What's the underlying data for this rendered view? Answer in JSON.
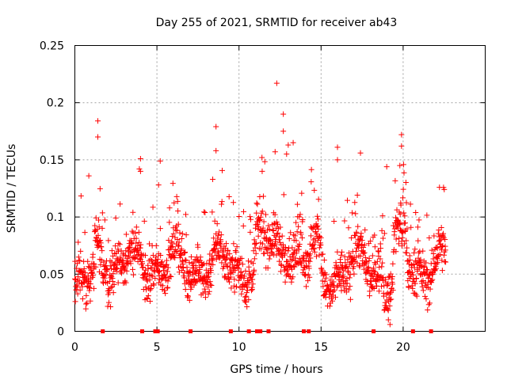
{
  "chart_data": {
    "type": "scatter",
    "title": "Day 255 of 2021, SRMTID for receiver ab43",
    "xlabel": "GPS time / hours",
    "ylabel": "SRMTID / TECUs",
    "xlim": [
      0,
      25
    ],
    "ylim": [
      0,
      0.25
    ],
    "x_ticks": [
      0,
      5,
      10,
      15,
      20
    ],
    "x_tick_labels": [
      "0",
      "5",
      "10",
      "15",
      "20"
    ],
    "y_ticks": [
      0,
      0.05,
      0.1,
      0.15,
      0.2,
      0.25
    ],
    "y_tick_labels": [
      "0",
      "0.05",
      "0.1",
      "0.15",
      "0.2",
      "0.25"
    ],
    "grid": true,
    "marker": "plus",
    "color": "#ff0000",
    "data_span_hours": [
      0,
      22.6
    ],
    "outliers": [
      {
        "x": 1.4,
        "y": 0.184
      },
      {
        "x": 1.4,
        "y": 0.17
      },
      {
        "x": 0.85,
        "y": 0.136
      },
      {
        "x": 4.0,
        "y": 0.151
      },
      {
        "x": 4.0,
        "y": 0.14
      },
      {
        "x": 5.2,
        "y": 0.149
      },
      {
        "x": 5.1,
        "y": 0.128
      },
      {
        "x": 8.6,
        "y": 0.179
      },
      {
        "x": 8.6,
        "y": 0.158
      },
      {
        "x": 8.4,
        "y": 0.133
      },
      {
        "x": 12.3,
        "y": 0.217
      },
      {
        "x": 12.7,
        "y": 0.19
      },
      {
        "x": 12.7,
        "y": 0.175
      },
      {
        "x": 13.0,
        "y": 0.163
      },
      {
        "x": 13.3,
        "y": 0.165
      },
      {
        "x": 12.9,
        "y": 0.155
      },
      {
        "x": 12.2,
        "y": 0.157
      },
      {
        "x": 11.4,
        "y": 0.152
      },
      {
        "x": 16.0,
        "y": 0.161
      },
      {
        "x": 16.0,
        "y": 0.15
      },
      {
        "x": 17.4,
        "y": 0.156
      },
      {
        "x": 19.0,
        "y": 0.144
      },
      {
        "x": 19.9,
        "y": 0.172
      },
      {
        "x": 19.9,
        "y": 0.162
      },
      {
        "x": 19.8,
        "y": 0.145
      },
      {
        "x": 19.1,
        "y": 0.01
      },
      {
        "x": 19.2,
        "y": 0.006
      }
    ],
    "gap_markers_x": [
      1.7,
      4.1,
      4.9,
      5.05,
      7.05,
      9.5,
      10.6,
      11.1,
      11.3,
      11.8,
      13.95,
      14.25,
      18.2,
      20.6,
      21.7
    ]
  }
}
